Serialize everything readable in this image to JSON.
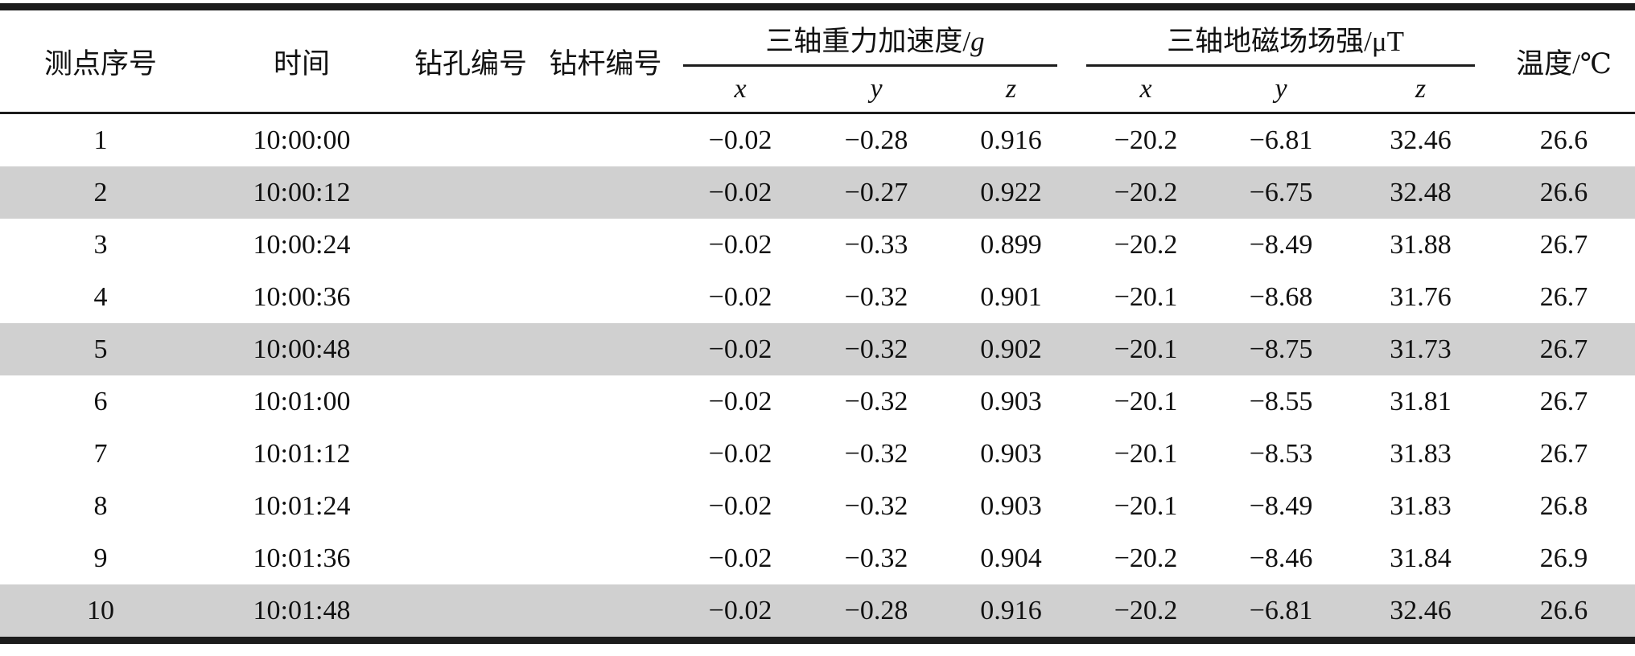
{
  "table": {
    "left_columns": [
      "测点序号",
      "时间",
      "钻孔编号",
      "钻杆编号"
    ],
    "groups": [
      {
        "prefix": "三轴重力加速度/",
        "unit": "g",
        "unit_italic": true,
        "subs": [
          "x",
          "y",
          "z"
        ]
      },
      {
        "prefix": "三轴地磁场场强/",
        "unit": "μT",
        "unit_italic": false,
        "subs": [
          "x",
          "y",
          "z"
        ]
      }
    ],
    "temperature_header": "温度/℃",
    "rows": [
      [
        "1",
        "10:00:00",
        "",
        "",
        "−0.02",
        "−0.28",
        "0.916",
        "−20.2",
        "−6.81",
        "32.46",
        "26.6"
      ],
      [
        "2",
        "10:00:12",
        "",
        "",
        "−0.02",
        "−0.27",
        "0.922",
        "−20.2",
        "−6.75",
        "32.48",
        "26.6"
      ],
      [
        "3",
        "10:00:24",
        "",
        "",
        "−0.02",
        "−0.33",
        "0.899",
        "−20.2",
        "−8.49",
        "31.88",
        "26.7"
      ],
      [
        "4",
        "10:00:36",
        "",
        "",
        "−0.02",
        "−0.32",
        "0.901",
        "−20.1",
        "−8.68",
        "31.76",
        "26.7"
      ],
      [
        "5",
        "10:00:48",
        "",
        "",
        "−0.02",
        "−0.32",
        "0.902",
        "−20.1",
        "−8.75",
        "31.73",
        "26.7"
      ],
      [
        "6",
        "10:01:00",
        "",
        "",
        "−0.02",
        "−0.32",
        "0.903",
        "−20.1",
        "−8.55",
        "31.81",
        "26.7"
      ],
      [
        "7",
        "10:01:12",
        "",
        "",
        "−0.02",
        "−0.32",
        "0.903",
        "−20.1",
        "−8.53",
        "31.83",
        "26.7"
      ],
      [
        "8",
        "10:01:24",
        "",
        "",
        "−0.02",
        "−0.32",
        "0.903",
        "−20.1",
        "−8.49",
        "31.83",
        "26.8"
      ],
      [
        "9",
        "10:01:36",
        "",
        "",
        "−0.02",
        "−0.32",
        "0.904",
        "−20.2",
        "−8.46",
        "31.84",
        "26.9"
      ],
      [
        "10",
        "10:01:48",
        "",
        "",
        "−0.02",
        "−0.28",
        "0.916",
        "−20.2",
        "−6.81",
        "32.46",
        "26.6"
      ]
    ],
    "shaded_rows": [
      2,
      5,
      10
    ],
    "colors": {
      "shade": "#d0d0d0",
      "rule": "#1c1c1c",
      "text": "#111111"
    }
  }
}
